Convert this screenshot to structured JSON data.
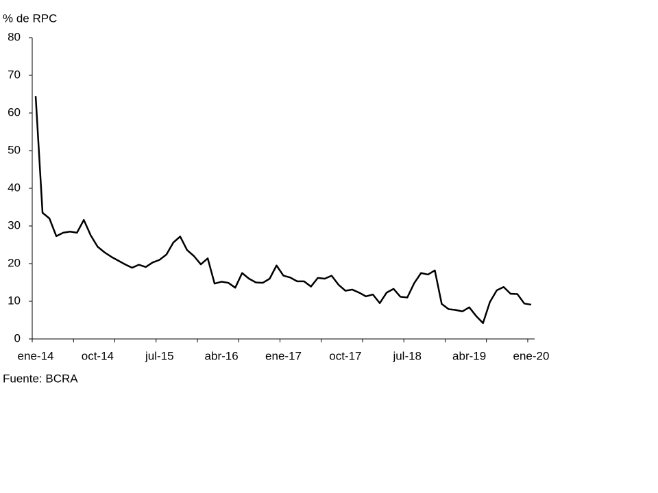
{
  "chart_data": {
    "type": "line",
    "y_label": "% de RPC",
    "source": "Fuente: BCRA",
    "categories": [
      "ene-14",
      null,
      null,
      null,
      null,
      null,
      null,
      null,
      null,
      "oct-14",
      null,
      null,
      null,
      null,
      null,
      null,
      null,
      null,
      "jul-15",
      null,
      null,
      null,
      null,
      null,
      null,
      null,
      null,
      "abr-16",
      null,
      null,
      null,
      null,
      null,
      null,
      null,
      null,
      "ene-17",
      null,
      null,
      null,
      null,
      null,
      null,
      null,
      null,
      "oct-17",
      null,
      null,
      null,
      null,
      null,
      null,
      null,
      null,
      "jul-18",
      null,
      null,
      null,
      null,
      null,
      null,
      null,
      null,
      "abr-19",
      null,
      null,
      null,
      null,
      null,
      null,
      null,
      null,
      "ene-20"
    ],
    "series": [
      {
        "name": "% de RPC",
        "color": "#000000",
        "values": [
          64.5,
          33.5,
          32,
          27.3,
          28.2,
          28.5,
          28.2,
          31.6,
          27.5,
          24.5,
          23,
          21.8,
          20.8,
          19.8,
          18.9,
          19.7,
          19.1,
          20.3,
          21,
          22.4,
          25.6,
          27.2,
          23.6,
          22,
          19.8,
          21.4,
          14.7,
          15.2,
          14.9,
          13.6,
          17.5,
          16,
          15,
          14.9,
          16,
          19.5,
          16.8,
          16.3,
          15.3,
          15.3,
          13.9,
          16.2,
          16,
          16.8,
          14.4,
          12.8,
          13.1,
          12.3,
          11.3,
          11.8,
          9.5,
          12.3,
          13.3,
          11.2,
          11,
          14.8,
          17.5,
          17.1,
          18.2,
          9.3,
          7.9,
          7.7,
          7.3,
          8.4,
          6.1,
          4.2,
          9.8,
          12.9,
          13.8,
          12,
          11.9,
          9.4,
          9.1
        ]
      }
    ],
    "ylim": [
      0,
      80
    ],
    "yticks": [
      0,
      10,
      20,
      30,
      40,
      50,
      60,
      70,
      80
    ],
    "grid": false
  }
}
